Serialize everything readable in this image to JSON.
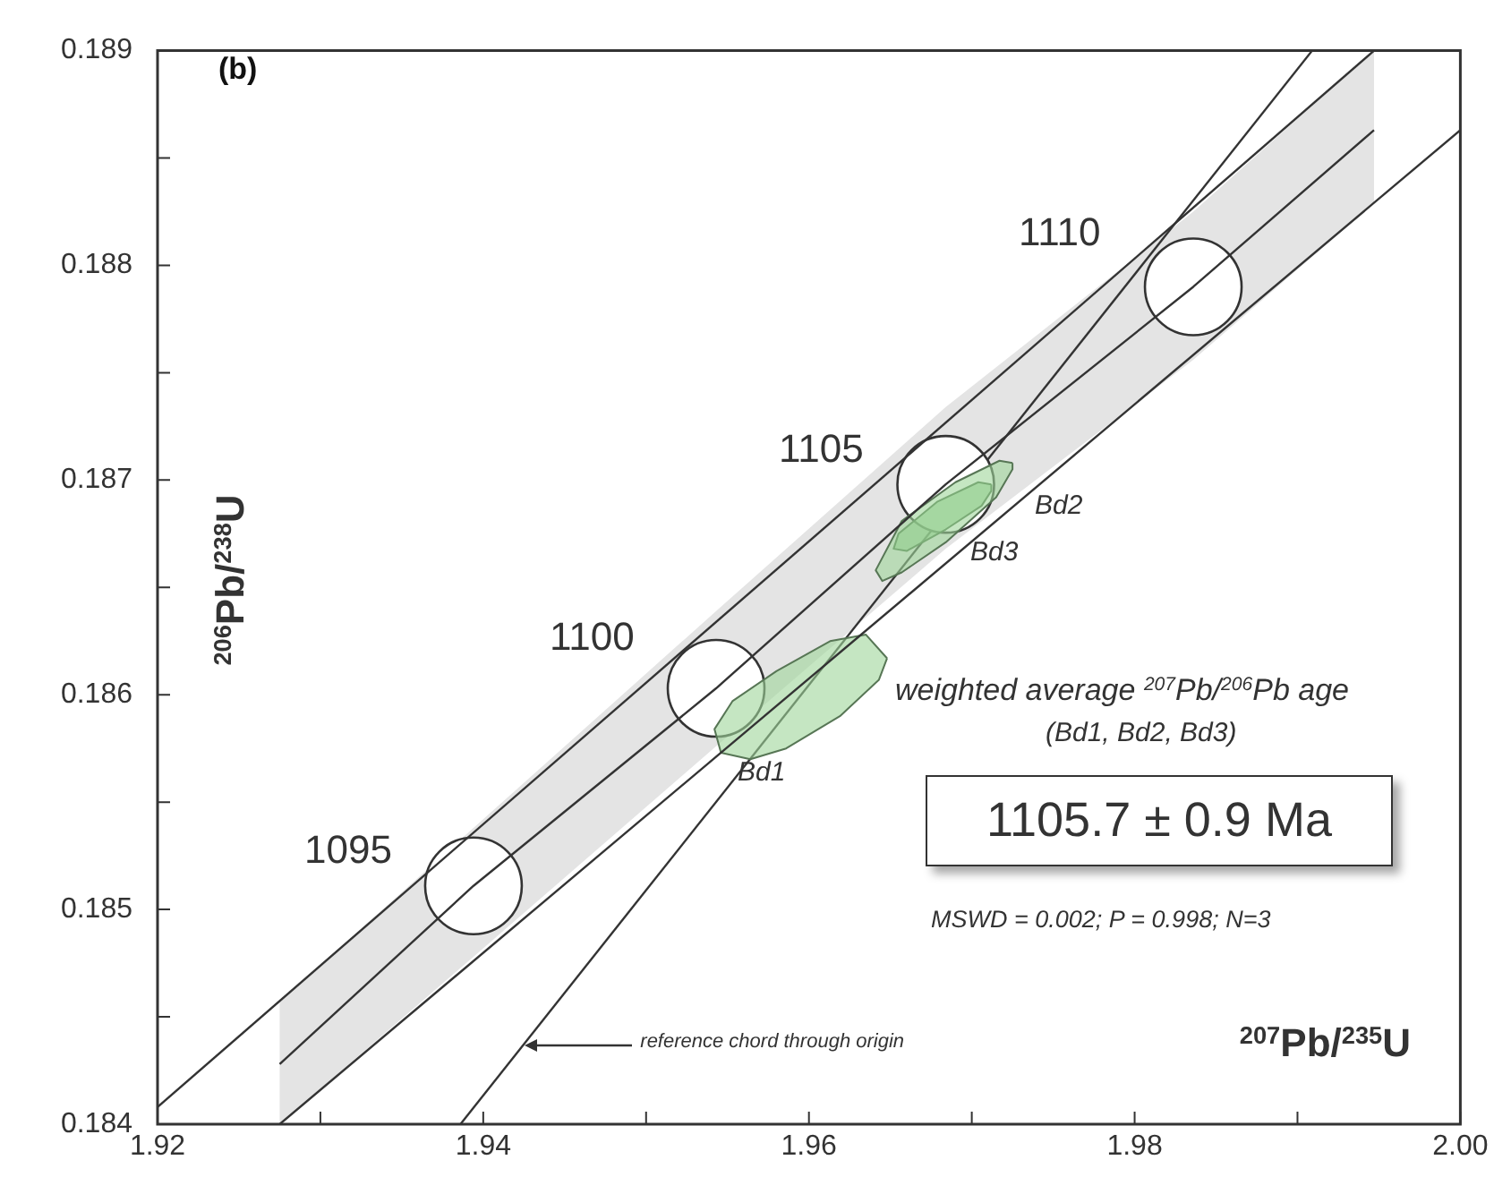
{
  "chart_data": {
    "type": "line",
    "xlabel": "$^{207}$Pb/$^{235}$U",
    "ylabel": "$^{206}$Pb/$^{238}$U",
    "xlim": [
      1.92,
      2.0
    ],
    "ylim": [
      0.184,
      0.189
    ],
    "xticks": [
      1.92,
      {
        "value": 1.93,
        "label": null
      },
      1.94,
      {
        "value": 1.95,
        "label": null
      },
      1.96,
      {
        "value": 1.97,
        "label": null
      },
      1.98,
      {
        "value": 1.99,
        "label": null
      },
      {
        "value": 2.0,
        "label": "2.00"
      }
    ],
    "yticks": [
      0.184,
      {
        "value": 0.1845,
        "label": null
      },
      0.185,
      {
        "value": 0.1855,
        "label": null
      },
      0.186,
      {
        "value": 0.1865,
        "label": null
      },
      0.187,
      {
        "value": 0.1875,
        "label": null
      },
      0.188,
      {
        "value": 0.1885,
        "label": null
      },
      0.189
    ],
    "grid": false,
    "legend": false,
    "marker": "none",
    "line_style": "solid",
    "series": [
      {
        "color": "#333333",
        "x": [
          1.9275,
          1.9394,
          1.9543,
          1.9684,
          1.9836,
          1.9947
        ],
        "values": [
          0.18428,
          0.18511,
          0.18603,
          0.18698,
          0.1879,
          0.18863
        ],
        "lower": [
          0.184,
          0.18478,
          0.18576,
          0.18668,
          0.18756,
          0.18829
        ],
        "upper": [
          0.18457,
          0.18538,
          0.18639,
          0.18734,
          0.18825,
          0.189
        ]
      },
      {
        "color": "#333333",
        "x": [
          1.92,
          1.9947
        ],
        "values": [
          0.18408,
          0.189
        ]
      },
      {
        "color": "#333333",
        "x": [
          1.9275,
          2.0
        ],
        "values": [
          0.184,
          0.18863
        ]
      },
      {
        "type": "area",
        "color": "#9ed69a",
        "x": [
          1.9648,
          1.9643,
          1.9619,
          1.9586,
          1.9564,
          1.9546,
          1.9542,
          1.9553,
          1.958,
          1.9613,
          1.9635,
          1.9648
        ],
        "values": [
          0.18617,
          0.18607,
          0.1859,
          0.18575,
          0.1857,
          0.18573,
          0.18584,
          0.18597,
          0.18611,
          0.18625,
          0.18628,
          0.18617
        ]
      },
      {
        "type": "area",
        "color": "#9ed69a",
        "x": [
          1.9725,
          1.9717,
          1.969,
          1.9657,
          1.9641,
          1.9645,
          1.9657,
          1.9684,
          1.9715,
          1.9725,
          1.9725
        ],
        "values": [
          0.18708,
          0.18709,
          0.18699,
          0.18681,
          0.18658,
          0.18653,
          0.18657,
          0.18671,
          0.18692,
          0.18705,
          0.18708
        ]
      },
      {
        "type": "area",
        "color": "#7cc276",
        "x": [
          1.9712,
          1.9704,
          1.9679,
          1.9655,
          1.9652,
          1.966,
          1.9684,
          1.9706,
          1.9712,
          1.9712
        ],
        "values": [
          0.18698,
          0.18699,
          0.1869,
          0.18675,
          0.18668,
          0.18667,
          0.18677,
          0.18688,
          0.18695,
          0.18698
        ]
      },
      {
        "type": "scatter",
        "marker": "circle",
        "color": "#333333",
        "x": [
          1.9394,
          1.9543,
          1.9684,
          1.9836
        ],
        "values": [
          0.18511,
          0.18603,
          0.18698,
          0.1879
        ]
      },
      {
        "color": "#333333",
        "x": [
          1.9386,
          1.9909
        ],
        "values": [
          0.184,
          0.189
        ]
      }
    ],
    "annotations": [
      "(b)",
      "weighted average $^{207}$Pb/$^{206}$Pb age",
      "(Bd1, Bd2, Bd3)",
      "1105.7 ± 0.9 Ma",
      "MSWD = 0.002; P = 0.998; N=3",
      {
        "text": "reference chord through origin",
        "x": 1.9425,
        "y": 0.18437
      },
      "1095",
      "1100",
      "1105",
      "1110",
      "Bd1",
      "Bd2",
      "Bd3"
    ]
  }
}
